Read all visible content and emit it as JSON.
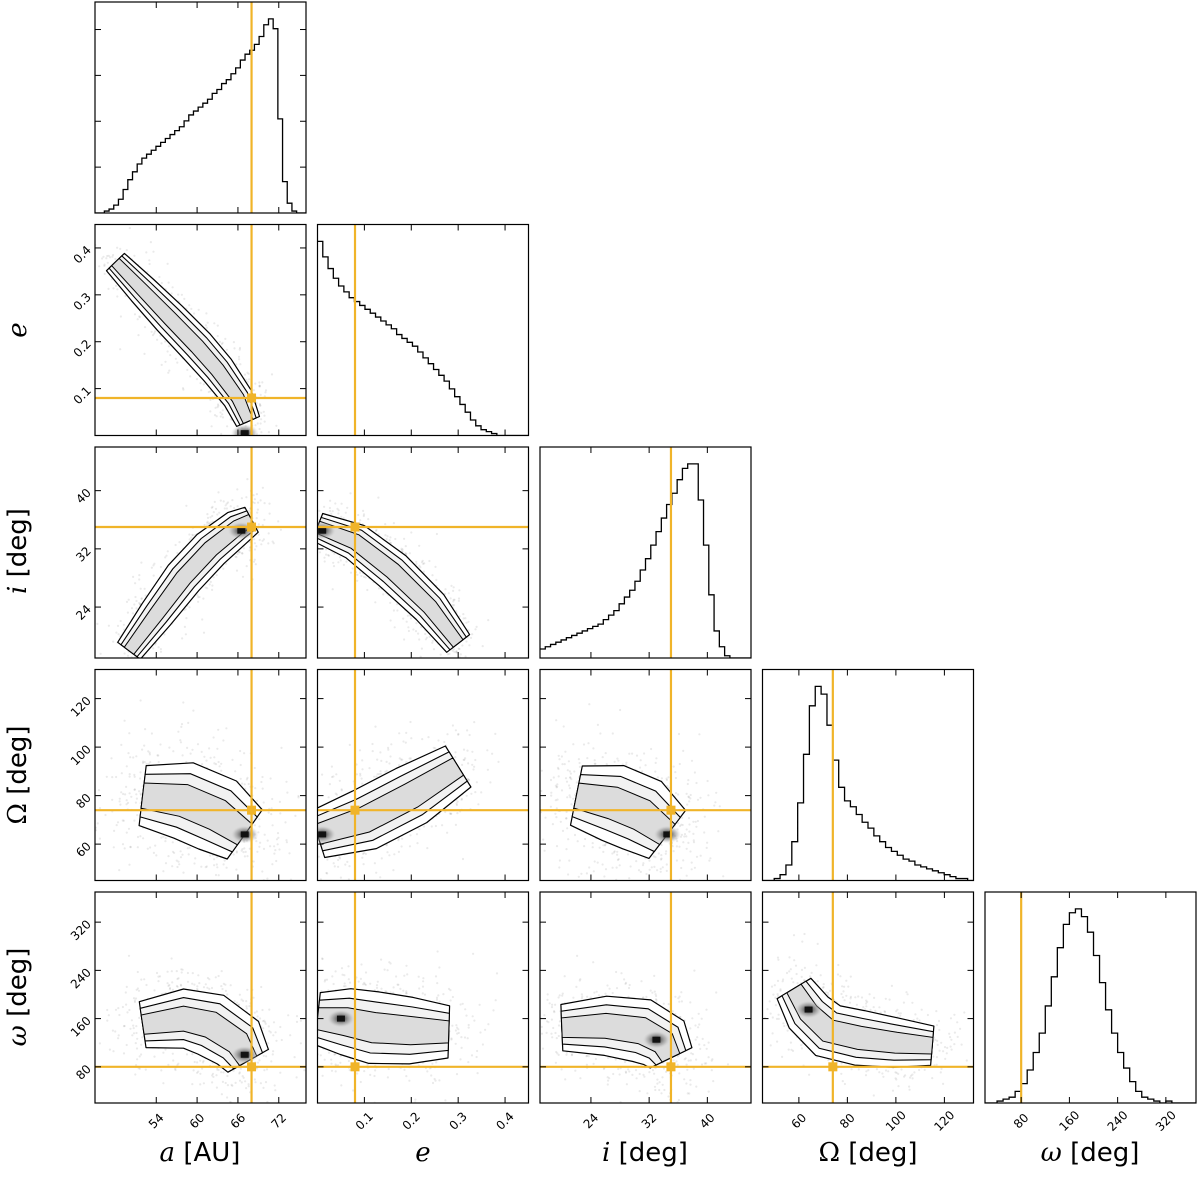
{
  "chart_data": {
    "type": "corner",
    "parameters": [
      {
        "key": "a",
        "symbol": "a",
        "unit": "[AU]",
        "range": [
          45,
          76
        ],
        "ticks": [
          54,
          60,
          66,
          72
        ],
        "truth": 68.0,
        "hist": {
          "edges_from": 45,
          "edges_to": 76,
          "counts": [
            0,
            0,
            1,
            2,
            4,
            7,
            12,
            17,
            21,
            25,
            28,
            30,
            32,
            34,
            36,
            38,
            40,
            42,
            44,
            47,
            50,
            52,
            54,
            56,
            58,
            61,
            63,
            66,
            68,
            71,
            74,
            78,
            81,
            83,
            86,
            90,
            96,
            99,
            94,
            48,
            16,
            5,
            1,
            0,
            0
          ]
        }
      },
      {
        "key": "e",
        "symbol": "e",
        "unit": "",
        "range": [
          0.0,
          0.45
        ],
        "ticks": [
          0.1,
          0.2,
          0.3,
          0.4
        ],
        "tick_labels": [
          "0.1",
          "0.2",
          "0.3",
          "0.4"
        ],
        "truth": 0.08,
        "hist": {
          "edges_from": 0.0,
          "edges_to": 0.45,
          "counts": [
            100,
            92,
            86,
            81,
            77,
            74,
            71,
            69,
            67,
            65,
            63,
            61,
            59,
            57,
            55,
            52,
            50,
            48,
            46,
            43,
            40,
            37,
            34,
            31,
            28,
            24,
            20,
            16,
            12,
            8,
            5,
            3,
            2,
            1,
            0,
            0,
            0,
            0,
            0,
            0
          ]
        }
      },
      {
        "key": "i",
        "symbol": "i",
        "unit": "[deg]",
        "range": [
          17,
          46
        ],
        "ticks": [
          24,
          32,
          40
        ],
        "truth": 35.0,
        "hist": {
          "edges_from": 17,
          "edges_to": 46,
          "counts": [
            4,
            5,
            6,
            7,
            8,
            9,
            10,
            11,
            12,
            13,
            14,
            15,
            17,
            19,
            21,
            24,
            27,
            30,
            34,
            39,
            44,
            50,
            56,
            62,
            68,
            73,
            79,
            84,
            86,
            86,
            70,
            50,
            28,
            12,
            5,
            1,
            0,
            0,
            0,
            0
          ]
        }
      },
      {
        "key": "Omega",
        "symbol": "Ω",
        "unit": "[deg]",
        "range": [
          45,
          132
        ],
        "ticks": [
          60,
          80,
          100,
          120
        ],
        "truth": 74.0,
        "hist": {
          "edges_from": 45,
          "edges_to": 132,
          "counts": [
            0,
            0,
            1,
            3,
            8,
            20,
            40,
            65,
            90,
            100,
            96,
            80,
            62,
            48,
            41,
            38,
            34,
            30,
            27,
            23,
            20,
            17,
            15,
            13,
            11,
            10,
            8,
            7,
            6,
            5,
            4,
            3,
            2,
            1,
            1,
            0
          ]
        }
      },
      {
        "key": "omega",
        "symbol": "ω",
        "unit": "[deg]",
        "range": [
          20,
          370
        ],
        "ticks": [
          80,
          160,
          240,
          320
        ],
        "truth": 80.0,
        "hist": {
          "edges_from": 20,
          "edges_to": 370,
          "counts": [
            0,
            0,
            1,
            2,
            3,
            6,
            10,
            17,
            26,
            36,
            50,
            65,
            80,
            92,
            98,
            100,
            96,
            88,
            76,
            62,
            48,
            36,
            26,
            18,
            11,
            6,
            3,
            2,
            1,
            0,
            1,
            0,
            0,
            0,
            0
          ]
        }
      }
    ],
    "truth_color": "#f0b429",
    "contour_levels": 4,
    "xlabels_shown": [
      "a [AU]",
      "e",
      "i [deg]",
      "Ω [deg]",
      "ω [deg]"
    ],
    "ylabels_shown": [
      "e",
      "i [deg]",
      "Ω [deg]",
      "ω [deg]"
    ],
    "diagonal_yticks_shown": "first panel only, unlabeled"
  }
}
